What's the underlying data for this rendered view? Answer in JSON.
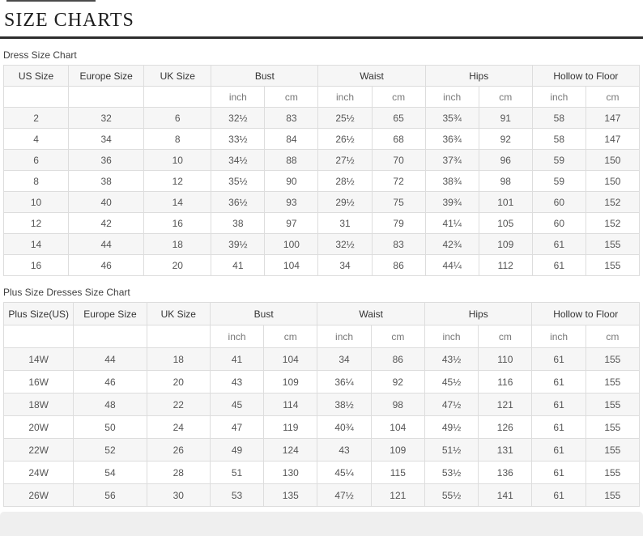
{
  "page": {
    "title": "SIZE CHARTS"
  },
  "tables": [
    {
      "label": "Dress Size Chart",
      "columns": [
        "US Size",
        "Europe Size",
        "UK Size"
      ],
      "group_columns": [
        "Bust",
        "Waist",
        "Hips",
        "Hollow to Floor"
      ],
      "unit_labels": [
        "inch",
        "cm"
      ],
      "rows": [
        [
          "2",
          "32",
          "6",
          "32½",
          "83",
          "25½",
          "65",
          "35¾",
          "91",
          "58",
          "147"
        ],
        [
          "4",
          "34",
          "8",
          "33½",
          "84",
          "26½",
          "68",
          "36¾",
          "92",
          "58",
          "147"
        ],
        [
          "6",
          "36",
          "10",
          "34½",
          "88",
          "27½",
          "70",
          "37¾",
          "96",
          "59",
          "150"
        ],
        [
          "8",
          "38",
          "12",
          "35½",
          "90",
          "28½",
          "72",
          "38¾",
          "98",
          "59",
          "150"
        ],
        [
          "10",
          "40",
          "14",
          "36½",
          "93",
          "29½",
          "75",
          "39¾",
          "101",
          "60",
          "152"
        ],
        [
          "12",
          "42",
          "16",
          "38",
          "97",
          "31",
          "79",
          "41¼",
          "105",
          "60",
          "152"
        ],
        [
          "14",
          "44",
          "18",
          "39½",
          "100",
          "32½",
          "83",
          "42¾",
          "109",
          "61",
          "155"
        ],
        [
          "16",
          "46",
          "20",
          "41",
          "104",
          "34",
          "86",
          "44¼",
          "112",
          "61",
          "155"
        ]
      ]
    },
    {
      "label": "Plus Size Dresses Size Chart",
      "columns": [
        "Plus Size(US)",
        "Europe Size",
        "UK Size"
      ],
      "group_columns": [
        "Bust",
        "Waist",
        "Hips",
        "Hollow to Floor"
      ],
      "unit_labels": [
        "inch",
        "cm"
      ],
      "rows": [
        [
          "14W",
          "44",
          "18",
          "41",
          "104",
          "34",
          "86",
          "43½",
          "110",
          "61",
          "155"
        ],
        [
          "16W",
          "46",
          "20",
          "43",
          "109",
          "36¼",
          "92",
          "45½",
          "116",
          "61",
          "155"
        ],
        [
          "18W",
          "48",
          "22",
          "45",
          "114",
          "38½",
          "98",
          "47½",
          "121",
          "61",
          "155"
        ],
        [
          "20W",
          "50",
          "24",
          "47",
          "119",
          "40¾",
          "104",
          "49½",
          "126",
          "61",
          "155"
        ],
        [
          "22W",
          "52",
          "26",
          "49",
          "124",
          "43",
          "109",
          "51½",
          "131",
          "61",
          "155"
        ],
        [
          "24W",
          "54",
          "28",
          "51",
          "130",
          "45¼",
          "115",
          "53½",
          "136",
          "61",
          "155"
        ],
        [
          "26W",
          "56",
          "30",
          "53",
          "135",
          "47½",
          "121",
          "55½",
          "141",
          "61",
          "155"
        ]
      ]
    }
  ],
  "colors": {
    "title_text": "#1d1d1d",
    "rule": "#2d2d2d",
    "top_strip": "#4a4a4a",
    "label_text": "#3f3f3f",
    "table_border": "#dddddd",
    "stripe": "#f6f6f6",
    "header_text": "#333333",
    "unit_text": "#777777",
    "cell_text": "#555555",
    "footer_strip": "#efefef"
  }
}
